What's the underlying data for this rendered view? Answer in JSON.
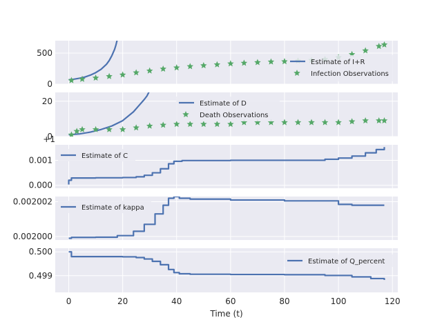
{
  "chart_data": [
    {
      "type": "line",
      "xlim": [
        -5,
        122
      ],
      "ylim": [
        0,
        700
      ],
      "yticks": [
        0,
        500
      ],
      "ytick_labels": [
        "0",
        "500"
      ],
      "xticks": [
        0,
        20,
        40,
        60,
        80,
        100,
        120
      ],
      "legend_position": "right",
      "grid": true,
      "series": [
        {
          "name": "Estimate of I+R",
          "kind": "line",
          "color": "#4c72b0",
          "points": [
            [
              0,
              70
            ],
            [
              2,
              80
            ],
            [
              4,
              95
            ],
            [
              6,
              115
            ],
            [
              8,
              145
            ],
            [
              10,
              185
            ],
            [
              12,
              240
            ],
            [
              14,
              320
            ],
            [
              15,
              380
            ],
            [
              16,
              460
            ],
            [
              17,
              560
            ],
            [
              17.5,
              630
            ],
            [
              18,
              720
            ]
          ]
        },
        {
          "name": "Infection Observations",
          "kind": "marker",
          "color": "#55a868",
          "points": [
            [
              1,
              60
            ],
            [
              5,
              80
            ],
            [
              10,
              100
            ],
            [
              15,
              125
            ],
            [
              20,
              150
            ],
            [
              25,
              185
            ],
            [
              30,
              215
            ],
            [
              35,
              245
            ],
            [
              40,
              265
            ],
            [
              45,
              285
            ],
            [
              50,
              300
            ],
            [
              55,
              315
            ],
            [
              60,
              330
            ],
            [
              65,
              340
            ],
            [
              70,
              350
            ],
            [
              75,
              360
            ],
            [
              80,
              365
            ],
            [
              85,
              375
            ],
            [
              90,
              385
            ],
            [
              95,
              400
            ],
            [
              100,
              430
            ],
            [
              105,
              480
            ],
            [
              110,
              540
            ],
            [
              115,
              610
            ],
            [
              117,
              635
            ]
          ]
        }
      ]
    },
    {
      "type": "line",
      "xlim": [
        -5,
        122
      ],
      "ylim": [
        0,
        25
      ],
      "yticks": [
        0,
        20
      ],
      "ytick_labels": [
        "0",
        "20"
      ],
      "xticks": [
        0,
        20,
        40,
        60,
        80,
        100,
        120
      ],
      "legend_position": "top-center",
      "grid": true,
      "series": [
        {
          "name": "Estimate of D",
          "kind": "line",
          "color": "#4c72b0",
          "points": [
            [
              0,
              1
            ],
            [
              4,
              1.5
            ],
            [
              8,
              2.5
            ],
            [
              12,
              4
            ],
            [
              16,
              6
            ],
            [
              20,
              9
            ],
            [
              24,
              14
            ],
            [
              26,
              17.5
            ],
            [
              28,
              21
            ],
            [
              29,
              23
            ],
            [
              30,
              26
            ]
          ]
        },
        {
          "name": "Death Observations",
          "kind": "marker",
          "color": "#55a868",
          "points": [
            [
              1,
              1
            ],
            [
              3,
              3
            ],
            [
              5,
              4
            ],
            [
              10,
              4
            ],
            [
              15,
              4
            ],
            [
              20,
              4
            ],
            [
              25,
              5
            ],
            [
              30,
              6
            ],
            [
              35,
              6.5
            ],
            [
              40,
              7
            ],
            [
              45,
              7
            ],
            [
              50,
              7
            ],
            [
              55,
              7
            ],
            [
              60,
              7
            ],
            [
              65,
              8
            ],
            [
              70,
              8
            ],
            [
              75,
              8
            ],
            [
              80,
              8
            ],
            [
              85,
              8
            ],
            [
              90,
              8
            ],
            [
              95,
              8
            ],
            [
              100,
              8
            ],
            [
              105,
              8.5
            ],
            [
              110,
              9
            ],
            [
              115,
              9
            ],
            [
              117,
              9
            ]
          ]
        }
      ]
    },
    {
      "type": "line",
      "xlim": [
        -5,
        122
      ],
      "ylim": [
        -0.00012,
        0.00162
      ],
      "yticks": [
        0,
        0.001
      ],
      "ytick_labels": [
        "0.000",
        "0.001"
      ],
      "offset_text": "+1",
      "xticks": [
        0,
        20,
        40,
        60,
        80,
        100,
        120
      ],
      "legend_position": "top-left",
      "grid": true,
      "series": [
        {
          "name": "Estimate of C",
          "kind": "step",
          "color": "#4c72b0",
          "points": [
            [
              0,
              3e-05
            ],
            [
              0,
              0.0002
            ],
            [
              1,
              0.00029
            ],
            [
              10,
              0.0003
            ],
            [
              20,
              0.00031
            ],
            [
              25,
              0.00034
            ],
            [
              28,
              0.0004
            ],
            [
              31,
              0.0005
            ],
            [
              34,
              0.00066
            ],
            [
              37,
              0.00086
            ],
            [
              39,
              0.00096
            ],
            [
              42,
              0.00099
            ],
            [
              60,
              0.001
            ],
            [
              80,
              0.001
            ],
            [
              95,
              0.00104
            ],
            [
              100,
              0.00109
            ],
            [
              105,
              0.00117
            ],
            [
              110,
              0.0013
            ],
            [
              114,
              0.00143
            ],
            [
              117,
              0.00153
            ]
          ]
        }
      ]
    },
    {
      "type": "line",
      "xlim": [
        -5,
        122
      ],
      "ylim": [
        0.0019998,
        0.0020023
      ],
      "yticks": [
        0.002,
        0.002002
      ],
      "ytick_labels": [
        "0.002000",
        "0.002002"
      ],
      "xticks": [
        0,
        20,
        40,
        60,
        80,
        100,
        120
      ],
      "legend_position": "top-left",
      "grid": true,
      "series": [
        {
          "name": "Estimate of kappa",
          "kind": "step",
          "color": "#4c72b0",
          "points": [
            [
              0,
              0.0019999
            ],
            [
              1,
              0.00199995
            ],
            [
              10,
              0.00199996
            ],
            [
              18,
              0.00200005
            ],
            [
              24,
              0.0020003
            ],
            [
              28,
              0.0020007
            ],
            [
              32,
              0.0020013
            ],
            [
              35,
              0.0020018
            ],
            [
              37,
              0.0020022
            ],
            [
              39,
              0.0020023
            ],
            [
              41,
              0.0020022
            ],
            [
              45,
              0.00200215
            ],
            [
              60,
              0.0020021
            ],
            [
              80,
              0.00200205
            ],
            [
              100,
              0.00200185
            ],
            [
              105,
              0.0020018
            ],
            [
              117,
              0.0020018
            ]
          ]
        }
      ]
    },
    {
      "type": "line",
      "xlim": [
        -5,
        122
      ],
      "ylim": [
        0.4983,
        0.50015
      ],
      "yticks": [
        0.499,
        0.5
      ],
      "ytick_labels": [
        "0.499",
        "0.500"
      ],
      "xticks": [
        0,
        20,
        40,
        60,
        80,
        100,
        120
      ],
      "xtick_labels": [
        "0",
        "20",
        "40",
        "60",
        "80",
        "100",
        "120"
      ],
      "xlabel": "Time (t)",
      "legend_position": "right",
      "grid": true,
      "series": [
        {
          "name": "Estimate of Q_percent",
          "kind": "step",
          "color": "#4c72b0",
          "points": [
            [
              0,
              0.5
            ],
            [
              1,
              0.4998
            ],
            [
              20,
              0.49979
            ],
            [
              25,
              0.49976
            ],
            [
              28,
              0.4997
            ],
            [
              31,
              0.4996
            ],
            [
              34,
              0.49946
            ],
            [
              37,
              0.49926
            ],
            [
              39,
              0.49913
            ],
            [
              41,
              0.49908
            ],
            [
              45,
              0.49906
            ],
            [
              60,
              0.49905
            ],
            [
              80,
              0.49904
            ],
            [
              95,
              0.49901
            ],
            [
              105,
              0.49895
            ],
            [
              112,
              0.49888
            ],
            [
              117,
              0.49882
            ]
          ]
        }
      ]
    }
  ]
}
